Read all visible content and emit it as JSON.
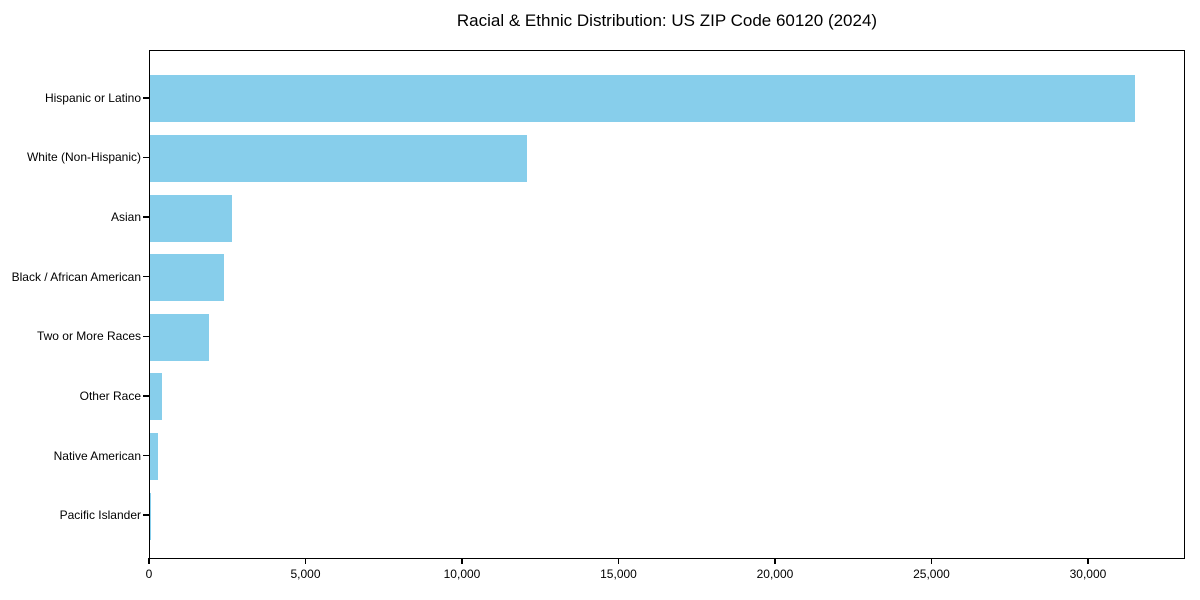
{
  "chart_data": {
    "type": "bar",
    "orientation": "horizontal",
    "title": "Racial & Ethnic Distribution: US ZIP Code 60120 (2024)",
    "categories": [
      "Hispanic or Latino",
      "White (Non-Hispanic)",
      "Asian",
      "Black / African American",
      "Two or More Races",
      "Other Race",
      "Native American",
      "Pacific Islander"
    ],
    "values": [
      31535,
      12080,
      2610,
      2355,
      1875,
      395,
      265,
      10
    ],
    "xlabel": "",
    "ylabel": "",
    "xlim": [
      0,
      33100
    ],
    "x_ticks": [
      0,
      5000,
      10000,
      15000,
      20000,
      25000,
      30000
    ],
    "x_tick_labels": [
      "0",
      "5,000",
      "10,000",
      "15,000",
      "20,000",
      "25,000",
      "30,000"
    ],
    "bar_color": "#87CEEB",
    "axis_color": "#000000",
    "background_color": "#ffffff",
    "grid": false,
    "legend": "none"
  }
}
